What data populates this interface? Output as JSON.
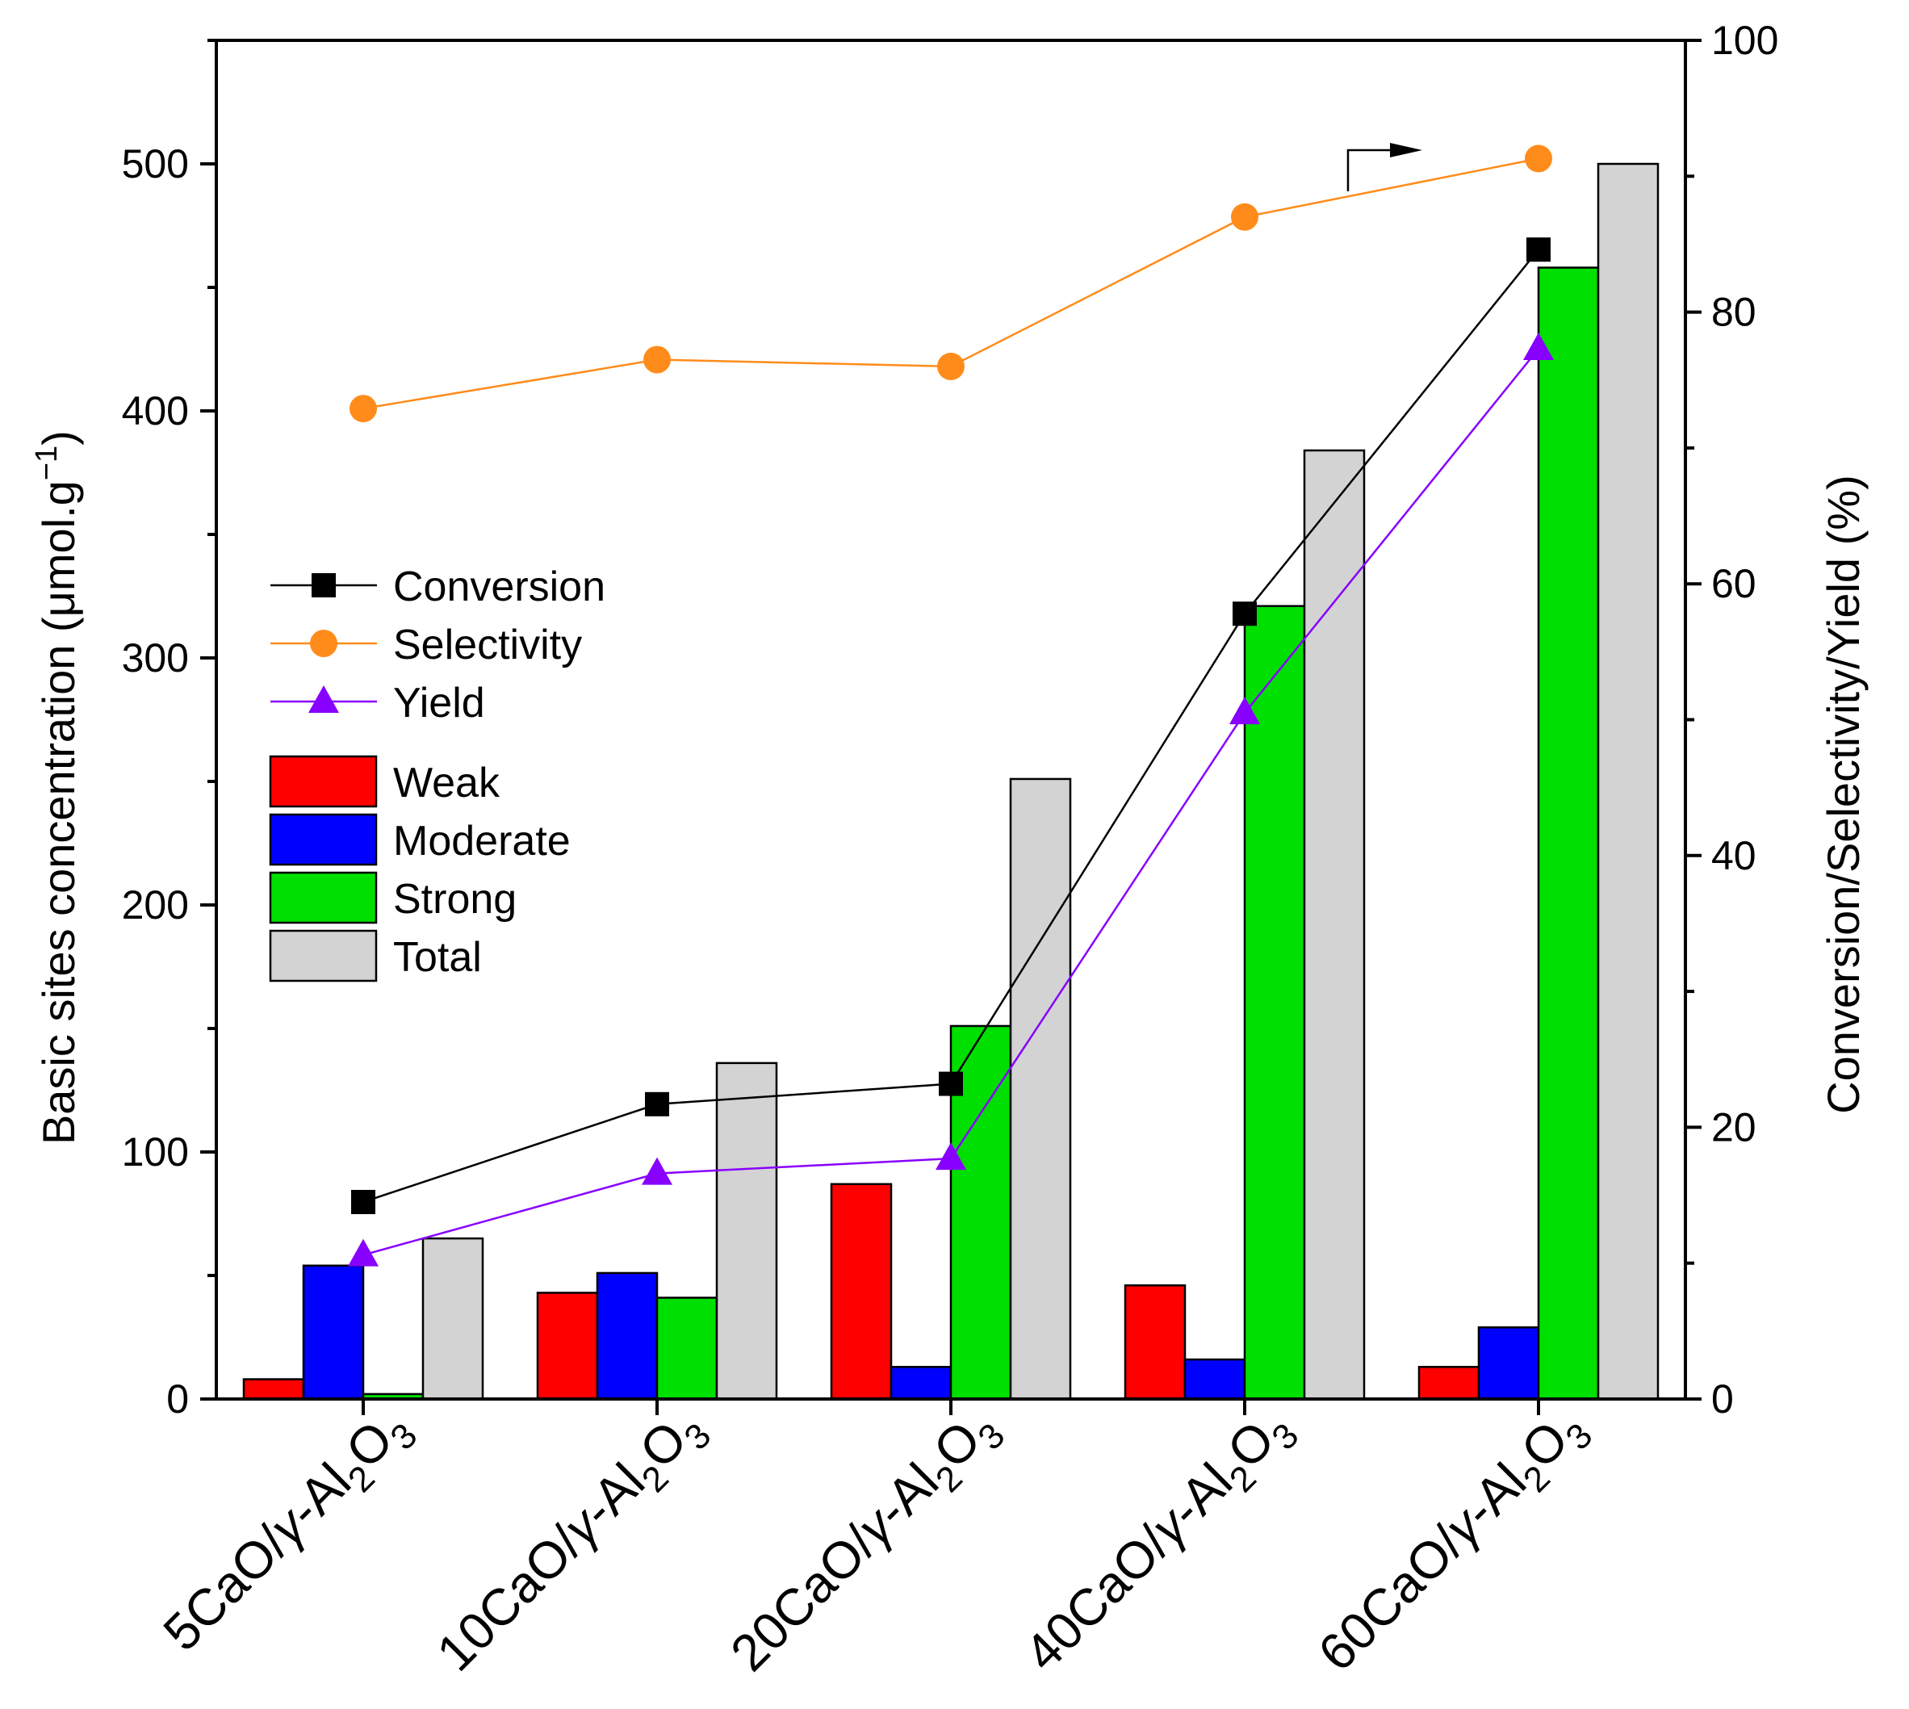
{
  "chart_data": {
    "type": "bar",
    "categories": [
      {
        "prefix": "5CaO/",
        "gamma": "γ",
        "mid": "-Al",
        "sub1": "2",
        "o": "O",
        "sub2": "3"
      },
      {
        "prefix": "10CaO/",
        "gamma": "γ",
        "mid": "-Al",
        "sub1": "2",
        "o": "O",
        "sub2": "3"
      },
      {
        "prefix": "20CaO/",
        "gamma": "γ",
        "mid": "-Al",
        "sub1": "2",
        "o": "O",
        "sub2": "3"
      },
      {
        "prefix": "40CaO/",
        "gamma": "γ",
        "mid": "-Al",
        "sub1": "2",
        "o": "O",
        "sub2": "3"
      },
      {
        "prefix": "60CaO/",
        "gamma": "γ",
        "mid": "-Al",
        "sub1": "2",
        "o": "O",
        "sub2": "3"
      }
    ],
    "bar_series": [
      {
        "name": "Weak",
        "color": "#ff0000",
        "values": [
          8,
          43,
          87,
          46,
          13
        ]
      },
      {
        "name": "Moderate",
        "color": "#0000ff",
        "values": [
          54,
          51,
          13,
          16,
          29
        ]
      },
      {
        "name": "Strong",
        "color": "#00e000",
        "values": [
          2,
          41,
          151,
          321,
          458
        ]
      },
      {
        "name": "Total",
        "color": "#d3d3d3",
        "values": [
          65,
          136,
          251,
          384,
          500
        ]
      }
    ],
    "line_series": [
      {
        "name": "Conversion",
        "color": "#000000",
        "marker": "square",
        "values": [
          14.5,
          21.7,
          23.2,
          57.8,
          84.6
        ]
      },
      {
        "name": "Selectivity",
        "color": "#ff8c1a",
        "marker": "circle",
        "values": [
          72.9,
          76.5,
          76.0,
          87.0,
          91.3
        ]
      },
      {
        "name": "Yield",
        "color": "#8800ff",
        "marker": "triangle",
        "values": [
          10.6,
          16.6,
          17.7,
          50.5,
          77.3
        ]
      }
    ],
    "y_left": {
      "label_main": "Basic sites concentration (μmol.g",
      "label_sup": "−1",
      "label_end": ")",
      "min": 0,
      "max": 550,
      "ticks": [
        0,
        100,
        200,
        300,
        400,
        500
      ]
    },
    "y_right": {
      "label": "Conversion/Selectivity/Yield (%)",
      "min": 0,
      "max": 100,
      "ticks": [
        0,
        20,
        40,
        60,
        80,
        100
      ]
    },
    "legend_position": "left-middle"
  }
}
